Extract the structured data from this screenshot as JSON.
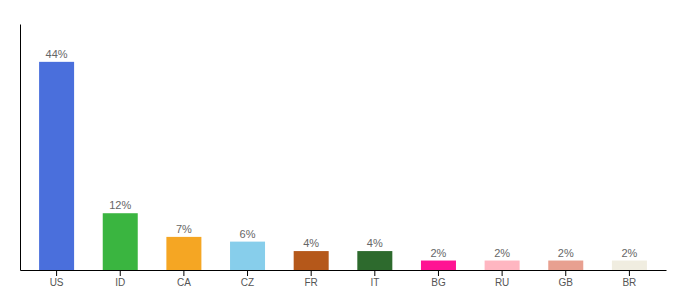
{
  "chart_data": {
    "type": "bar",
    "categories": [
      "US",
      "ID",
      "CA",
      "CZ",
      "FR",
      "IT",
      "BG",
      "RU",
      "GB",
      "BR"
    ],
    "values": [
      44,
      12,
      7,
      6,
      4,
      4,
      2,
      2,
      2,
      2
    ],
    "value_labels": [
      "44%",
      "12%",
      "7%",
      "6%",
      "4%",
      "4%",
      "2%",
      "2%",
      "2%",
      "2%"
    ],
    "colors": [
      "#4a6fdc",
      "#3ab540",
      "#f5a623",
      "#87ceeb",
      "#b5581a",
      "#2d6a2d",
      "#ff1493",
      "#ffb6c1",
      "#e8a090",
      "#f0ede0"
    ],
    "ylim": [
      0,
      52
    ],
    "data_labels": true,
    "tick_labels": "x",
    "grid": false
  }
}
